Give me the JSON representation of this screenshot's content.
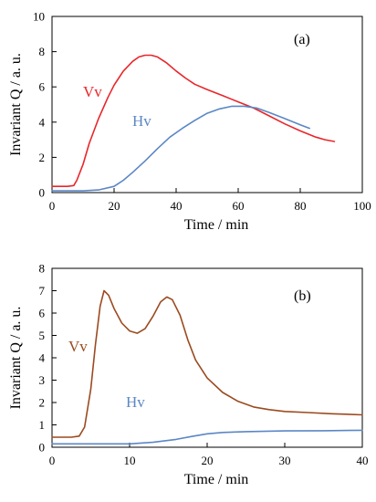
{
  "chart_data": [
    {
      "type": "line",
      "panel_label": "(a)",
      "xlabel": "Time / min",
      "ylabel": "Invariant Q / a. u.",
      "xlim": [
        0,
        100
      ],
      "ylim": [
        0,
        10
      ],
      "xticks": [
        0,
        20,
        40,
        60,
        80,
        100
      ],
      "yticks": [
        0,
        2,
        4,
        6,
        8,
        10
      ],
      "grid": false,
      "series": [
        {
          "name": "Vv",
          "color": "#e8262b",
          "points": [
            [
              0,
              0.35
            ],
            [
              5,
              0.35
            ],
            [
              7,
              0.4
            ],
            [
              8,
              0.7
            ],
            [
              10,
              1.6
            ],
            [
              12,
              2.8
            ],
            [
              15,
              4.2
            ],
            [
              18,
              5.4
            ],
            [
              20,
              6.1
            ],
            [
              23,
              6.9
            ],
            [
              26,
              7.45
            ],
            [
              28,
              7.7
            ],
            [
              30,
              7.8
            ],
            [
              32,
              7.8
            ],
            [
              34,
              7.7
            ],
            [
              37,
              7.35
            ],
            [
              40,
              6.9
            ],
            [
              43,
              6.5
            ],
            [
              46,
              6.15
            ],
            [
              50,
              5.85
            ],
            [
              55,
              5.5
            ],
            [
              60,
              5.15
            ],
            [
              65,
              4.8
            ],
            [
              70,
              4.35
            ],
            [
              75,
              3.9
            ],
            [
              80,
              3.5
            ],
            [
              85,
              3.15
            ],
            [
              88,
              3.0
            ],
            [
              91,
              2.9
            ]
          ]
        },
        {
          "name": "Hv",
          "color": "#5b87c5",
          "points": [
            [
              0,
              0.1
            ],
            [
              10,
              0.1
            ],
            [
              15,
              0.15
            ],
            [
              20,
              0.35
            ],
            [
              23,
              0.7
            ],
            [
              26,
              1.15
            ],
            [
              30,
              1.8
            ],
            [
              34,
              2.5
            ],
            [
              38,
              3.15
            ],
            [
              42,
              3.65
            ],
            [
              46,
              4.1
            ],
            [
              50,
              4.5
            ],
            [
              54,
              4.75
            ],
            [
              58,
              4.9
            ],
            [
              62,
              4.9
            ],
            [
              66,
              4.8
            ],
            [
              70,
              4.55
            ],
            [
              75,
              4.2
            ],
            [
              80,
              3.85
            ],
            [
              83,
              3.65
            ]
          ]
        }
      ]
    },
    {
      "type": "line",
      "panel_label": "(b)",
      "xlabel": "Time / min",
      "ylabel": "Invariant Q / a. u.",
      "xlim": [
        0,
        40
      ],
      "ylim": [
        0,
        8
      ],
      "xticks": [
        0,
        10,
        20,
        30,
        40
      ],
      "yticks": [
        0,
        1,
        2,
        3,
        4,
        5,
        6,
        7,
        8
      ],
      "grid": false,
      "series": [
        {
          "name": "Vv",
          "color": "#9b4a1f",
          "points": [
            [
              0,
              0.45
            ],
            [
              2.5,
              0.45
            ],
            [
              3.5,
              0.5
            ],
            [
              4.2,
              0.9
            ],
            [
              5,
              2.6
            ],
            [
              5.6,
              4.6
            ],
            [
              6.2,
              6.3
            ],
            [
              6.7,
              7.0
            ],
            [
              7.3,
              6.8
            ],
            [
              8,
              6.2
            ],
            [
              9,
              5.55
            ],
            [
              10,
              5.2
            ],
            [
              11,
              5.1
            ],
            [
              12,
              5.3
            ],
            [
              13,
              5.85
            ],
            [
              14,
              6.5
            ],
            [
              14.8,
              6.72
            ],
            [
              15.5,
              6.6
            ],
            [
              16.5,
              5.9
            ],
            [
              17.5,
              4.8
            ],
            [
              18.5,
              3.9
            ],
            [
              20,
              3.1
            ],
            [
              22,
              2.45
            ],
            [
              24,
              2.05
            ],
            [
              26,
              1.8
            ],
            [
              28,
              1.68
            ],
            [
              30,
              1.6
            ],
            [
              33,
              1.55
            ],
            [
              36,
              1.5
            ],
            [
              40,
              1.45
            ]
          ]
        },
        {
          "name": "Hv",
          "color": "#5b87c5",
          "points": [
            [
              0,
              0.15
            ],
            [
              10,
              0.15
            ],
            [
              13,
              0.22
            ],
            [
              16,
              0.35
            ],
            [
              18,
              0.48
            ],
            [
              20,
              0.6
            ],
            [
              22,
              0.66
            ],
            [
              25,
              0.7
            ],
            [
              30,
              0.73
            ],
            [
              35,
              0.74
            ],
            [
              40,
              0.76
            ]
          ]
        }
      ]
    }
  ]
}
